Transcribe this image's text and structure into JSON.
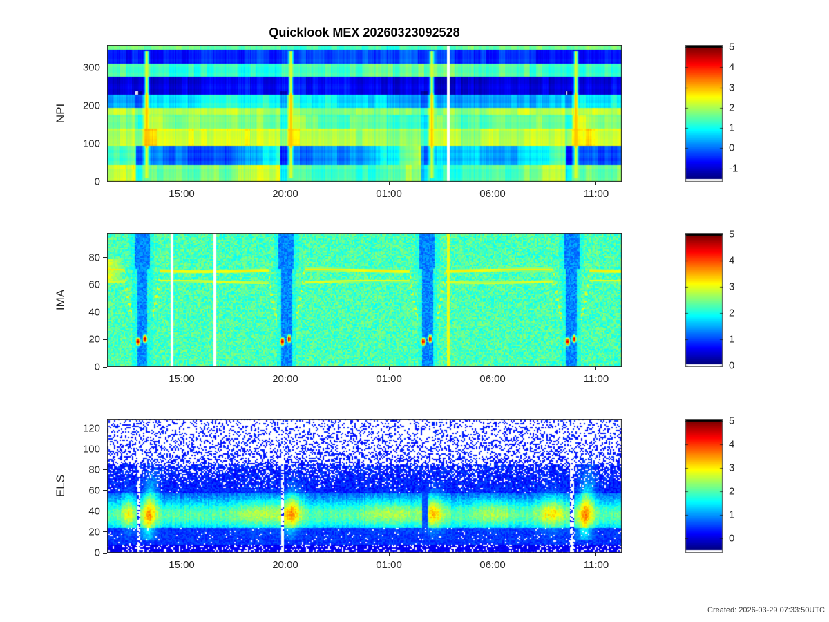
{
  "title": "Quicklook MEX 20260323092528",
  "footer": {
    "created": "Created: 2026-03-29 07:33:50UTC"
  },
  "chart_data": [
    {
      "type": "heatmap",
      "name": "NPI",
      "ylabel": "NPI",
      "ylim": [
        0,
        360
      ],
      "yticks": [
        0,
        100,
        200,
        300
      ],
      "xticks": [
        {
          "label": "15:00",
          "f": 0.145
        },
        {
          "label": "20:00",
          "f": 0.3463
        },
        {
          "label": "01:00",
          "f": 0.5477
        },
        {
          "label": "06:00",
          "f": 0.749
        },
        {
          "label": "11:00",
          "f": 0.9503
        }
      ],
      "caxis": [
        -1.66,
        5.1
      ],
      "colorbar": {
        "ticks": [
          5,
          4,
          3,
          2,
          1,
          0,
          -1
        ],
        "vtop": 5.1,
        "vbottom": -1.66
      },
      "render": {
        "style": "npi",
        "block_w": 9,
        "bands": [
          {
            "lo": 348,
            "hi": 361,
            "base": 1.45,
            "amp": 0.2
          },
          {
            "lo": 312,
            "hi": 348,
            "base": -0.35,
            "amp": 0.2
          },
          {
            "lo": 278,
            "hi": 312,
            "base": 1.4,
            "amp": 0.2
          },
          {
            "lo": 230,
            "hi": 278,
            "base": -0.8,
            "amp": 0.15
          },
          {
            "lo": 196,
            "hi": 230,
            "base": 0.75,
            "amp": 0.45
          },
          {
            "lo": 176,
            "hi": 196,
            "base": 1.9,
            "amp": 0.2
          },
          {
            "lo": 140,
            "hi": 176,
            "base": 1.55,
            "amp": 0.2
          },
          {
            "lo": 96,
            "hi": 140,
            "base": 2.15,
            "amp": 0.2
          },
          {
            "lo": 44,
            "hi": 96,
            "base": 0.15,
            "amp": 0.4
          },
          {
            "lo": 0,
            "hi": 44,
            "base": 1.45,
            "amp": 0.25
          }
        ],
        "events": [
          0.067,
          0.347,
          0.621,
          0.901
        ],
        "gaps": [
          0.662
        ]
      }
    },
    {
      "type": "heatmap",
      "name": "IMA",
      "ylabel": "IMA",
      "ylim": [
        0,
        98
      ],
      "yticks": [
        0,
        20,
        40,
        60,
        80
      ],
      "xticks": [
        {
          "label": "15:00",
          "f": 0.145
        },
        {
          "label": "20:00",
          "f": 0.3463
        },
        {
          "label": "01:00",
          "f": 0.5477
        },
        {
          "label": "06:00",
          "f": 0.749
        },
        {
          "label": "11:00",
          "f": 0.9503
        }
      ],
      "caxis": [
        -0.05,
        5.05
      ],
      "colorbar": {
        "ticks": [
          5,
          4,
          3,
          2,
          1,
          0
        ],
        "vtop": 5.05,
        "vbottom": -0.05
      },
      "render": {
        "style": "ima",
        "background": 2.25,
        "lines": [
          {
            "y": 71,
            "sigma": 1.5,
            "amp": 3.2
          },
          {
            "y": 62.8,
            "sigma": 1.2,
            "amp": 3.05
          }
        ],
        "dip_depth": 20,
        "dip_halfwidth": 26,
        "events": [
          0.067,
          0.347,
          0.621,
          0.901
        ],
        "gaps": [
          0.125,
          0.208
        ],
        "bright_col": 0.662
      }
    },
    {
      "type": "heatmap",
      "name": "ELS",
      "ylabel": "ELS",
      "ylim": [
        0,
        129
      ],
      "yticks": [
        0,
        20,
        40,
        60,
        80,
        100,
        120
      ],
      "xticks": [
        {
          "label": "15:00",
          "f": 0.145
        },
        {
          "label": "20:00",
          "f": 0.3463
        },
        {
          "label": "01:00",
          "f": 0.5477
        },
        {
          "label": "06:00",
          "f": 0.749
        },
        {
          "label": "11:00",
          "f": 0.9503
        }
      ],
      "caxis": [
        -0.62,
        5.09
      ],
      "colorbar": {
        "ticks": [
          5,
          4,
          3,
          2,
          1,
          0
        ],
        "vtop": 5.09,
        "vbottom": -0.62
      },
      "render": {
        "style": "els",
        "band_peak_y": 37,
        "flares": [
          {
            "f": 0.04,
            "amp": 0.9,
            "sx": 6,
            "sy": 13,
            "tilt": 0
          },
          {
            "f": 0.081,
            "amp": 1.4,
            "sx": 8,
            "sy": 21,
            "tilt": 0.5
          },
          {
            "f": 0.3,
            "amp": 0.55,
            "sx": 26,
            "sy": 11,
            "tilt": 0
          },
          {
            "f": 0.358,
            "amp": 1.3,
            "sx": 9,
            "sy": 15,
            "tilt": 0.3
          },
          {
            "f": 0.55,
            "amp": 0.45,
            "sx": 30,
            "sy": 10,
            "tilt": 0
          },
          {
            "f": 0.635,
            "amp": 1.15,
            "sx": 10,
            "sy": 13,
            "tilt": 0
          },
          {
            "f": 0.75,
            "amp": 0.5,
            "sx": 20,
            "sy": 10,
            "tilt": 0
          },
          {
            "f": 0.862,
            "amp": 1.0,
            "sx": 14,
            "sy": 12,
            "tilt": 0
          },
          {
            "f": 0.929,
            "amp": 1.5,
            "sx": 8,
            "sy": 22,
            "tilt": 0.5
          }
        ],
        "gaps": [
          0.06,
          0.34,
          0.902
        ],
        "dark_cols": [
          0.617
        ]
      }
    }
  ]
}
